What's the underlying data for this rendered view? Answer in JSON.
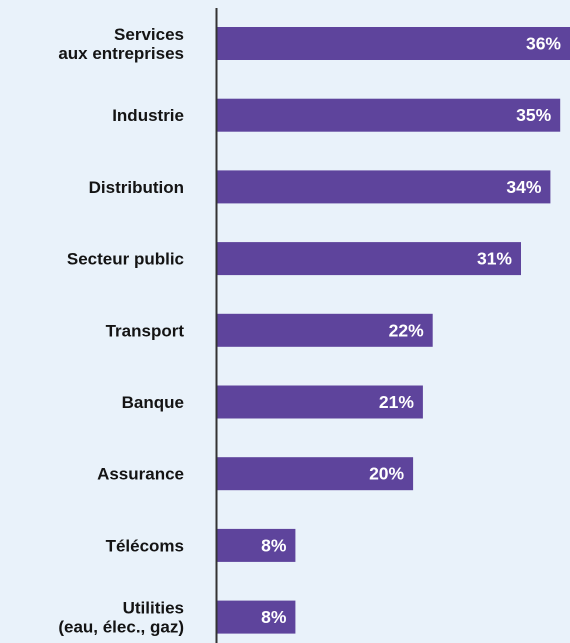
{
  "colors": {
    "background": "#e9f2fa",
    "bar": "#5e449c",
    "axis": "#333333",
    "label_text": "#141414",
    "value_text": "#ffffff"
  },
  "chart_data": {
    "type": "bar",
    "orientation": "horizontal",
    "categories": [
      [
        "Services",
        "aux  entreprises"
      ],
      [
        "Industrie"
      ],
      [
        "Distribution"
      ],
      [
        "Secteur public"
      ],
      [
        "Transport"
      ],
      [
        "Banque"
      ],
      [
        "Assurance"
      ],
      [
        "Télécoms"
      ],
      [
        "Utilities",
        "(eau, élec., gaz)"
      ]
    ],
    "values": [
      36,
      35,
      34,
      31,
      22,
      21,
      20,
      8,
      8
    ],
    "value_labels": [
      "36%",
      "35%",
      "34%",
      "31%",
      "22%",
      "21%",
      "20%",
      "8%",
      "8%"
    ],
    "unit": "%",
    "xlim": [
      0,
      36
    ],
    "grid": false,
    "legend": "none"
  }
}
